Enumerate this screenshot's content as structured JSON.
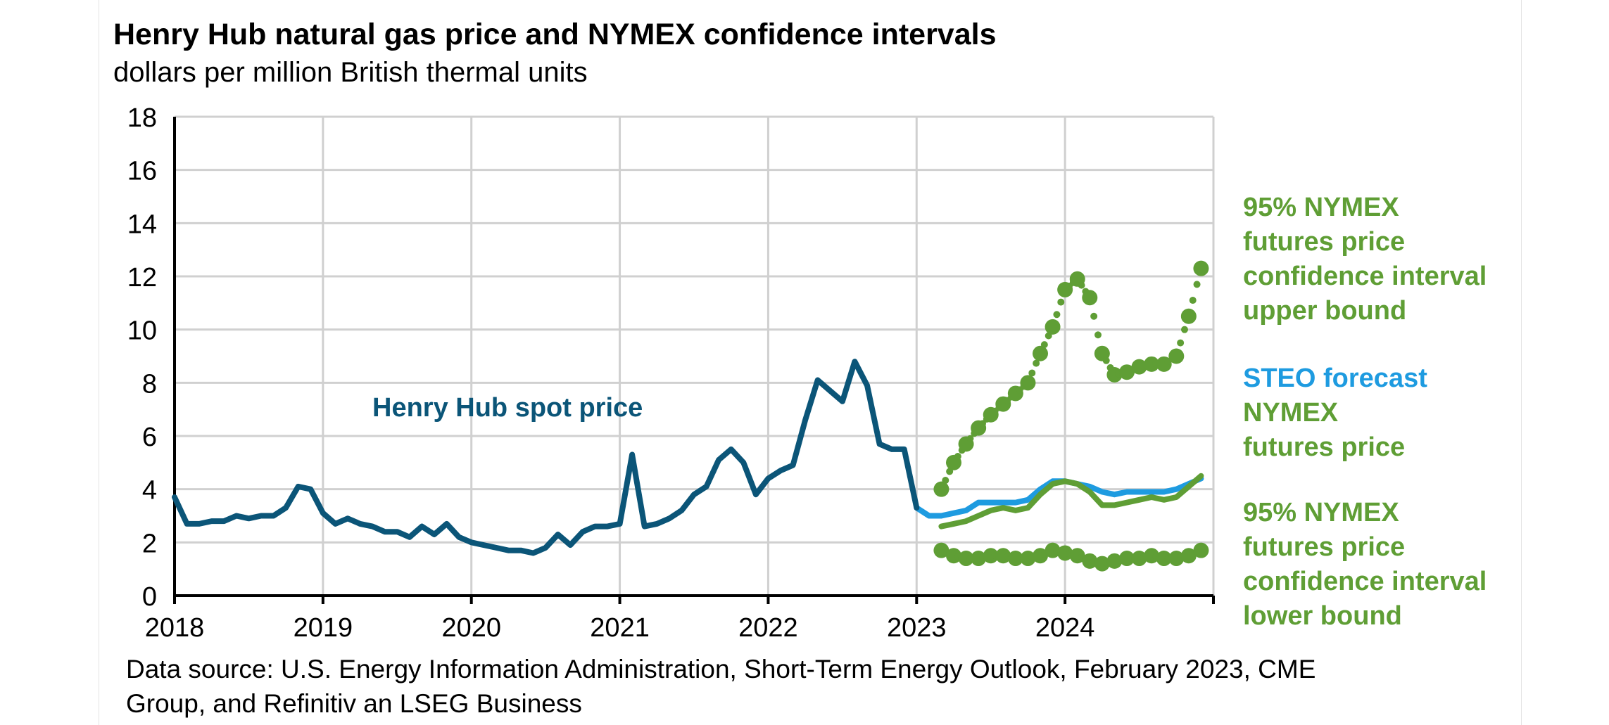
{
  "chart_data": {
    "type": "line",
    "title": "Henry Hub natural gas price and NYMEX confidence intervals",
    "subtitle": "dollars per million British thermal units",
    "ylim": [
      0,
      18
    ],
    "y_ticks": [
      "0",
      "2",
      "4",
      "6",
      "8",
      "10",
      "12",
      "14",
      "16",
      "18"
    ],
    "x_ticks": [
      "2018",
      "2019",
      "2020",
      "2021",
      "2022",
      "2023",
      "2024"
    ],
    "grid": true,
    "source": [
      "Data source: U.S. Energy Information Administration, Short-Term Energy Outlook, February 2023, CME",
      "Group, and Refinitiv an LSEG Business"
    ],
    "annotations": {
      "spot": "Henry Hub spot price",
      "upper": [
        "95% NYMEX",
        "futures price",
        "confidence interval",
        "upper bound"
      ],
      "steo": "STEO forecast",
      "nymex": [
        "NYMEX",
        "futures price"
      ],
      "lower": [
        "95% NYMEX",
        "futures price",
        "confidence interval",
        "lower bound"
      ]
    },
    "colors": {
      "spot": "#0b5578",
      "steo": "#1e9be0",
      "nymex": "#5f9e35"
    },
    "series": [
      {
        "name": "Henry Hub spot price",
        "x": [
          "2018-01",
          "2018-02",
          "2018-03",
          "2018-04",
          "2018-05",
          "2018-06",
          "2018-07",
          "2018-08",
          "2018-09",
          "2018-10",
          "2018-11",
          "2018-12",
          "2019-01",
          "2019-02",
          "2019-03",
          "2019-04",
          "2019-05",
          "2019-06",
          "2019-07",
          "2019-08",
          "2019-09",
          "2019-10",
          "2019-11",
          "2019-12",
          "2020-01",
          "2020-02",
          "2020-03",
          "2020-04",
          "2020-05",
          "2020-06",
          "2020-07",
          "2020-08",
          "2020-09",
          "2020-10",
          "2020-11",
          "2020-12",
          "2021-01",
          "2021-02",
          "2021-03",
          "2021-04",
          "2021-05",
          "2021-06",
          "2021-07",
          "2021-08",
          "2021-09",
          "2021-10",
          "2021-11",
          "2021-12",
          "2022-01",
          "2022-02",
          "2022-03",
          "2022-04",
          "2022-05",
          "2022-06",
          "2022-07",
          "2022-08",
          "2022-09",
          "2022-10",
          "2022-11",
          "2022-12",
          "2023-01"
        ],
        "values": [
          3.7,
          2.7,
          2.7,
          2.8,
          2.8,
          3.0,
          2.9,
          3.0,
          3.0,
          3.3,
          4.1,
          4.0,
          3.1,
          2.7,
          2.9,
          2.7,
          2.6,
          2.4,
          2.4,
          2.2,
          2.6,
          2.3,
          2.7,
          2.2,
          2.0,
          1.9,
          1.8,
          1.7,
          1.7,
          1.6,
          1.8,
          2.3,
          1.9,
          2.4,
          2.6,
          2.6,
          2.7,
          5.3,
          2.6,
          2.7,
          2.9,
          3.2,
          3.8,
          4.1,
          5.1,
          5.5,
          5.0,
          3.8,
          4.4,
          4.7,
          4.9,
          6.6,
          8.1,
          7.7,
          7.3,
          8.8,
          7.9,
          5.7,
          5.5,
          5.5,
          3.3
        ]
      },
      {
        "name": "STEO forecast",
        "x": [
          "2023-01",
          "2023-02",
          "2023-03",
          "2023-04",
          "2023-05",
          "2023-06",
          "2023-07",
          "2023-08",
          "2023-09",
          "2023-10",
          "2023-11",
          "2023-12",
          "2024-01",
          "2024-02",
          "2024-03",
          "2024-04",
          "2024-05",
          "2024-06",
          "2024-07",
          "2024-08",
          "2024-09",
          "2024-10",
          "2024-11",
          "2024-12"
        ],
        "values": [
          3.3,
          3.0,
          3.0,
          3.1,
          3.2,
          3.5,
          3.5,
          3.5,
          3.5,
          3.6,
          4.0,
          4.3,
          4.3,
          4.2,
          4.1,
          3.9,
          3.8,
          3.9,
          3.9,
          3.9,
          3.9,
          4.0,
          4.2,
          4.4
        ]
      },
      {
        "name": "NYMEX futures price",
        "x": [
          "2023-03",
          "2023-04",
          "2023-05",
          "2023-06",
          "2023-07",
          "2023-08",
          "2023-09",
          "2023-10",
          "2023-11",
          "2023-12",
          "2024-01",
          "2024-02",
          "2024-03",
          "2024-04",
          "2024-05",
          "2024-06",
          "2024-07",
          "2024-08",
          "2024-09",
          "2024-10",
          "2024-11",
          "2024-12"
        ],
        "values": [
          2.6,
          2.7,
          2.8,
          3.0,
          3.2,
          3.3,
          3.2,
          3.3,
          3.8,
          4.2,
          4.3,
          4.2,
          3.9,
          3.4,
          3.4,
          3.5,
          3.6,
          3.7,
          3.6,
          3.7,
          4.1,
          4.5
        ]
      },
      {
        "name": "95% NYMEX futures price confidence interval upper bound",
        "x": [
          "2023-03",
          "2023-04",
          "2023-05",
          "2023-06",
          "2023-07",
          "2023-08",
          "2023-09",
          "2023-10",
          "2023-11",
          "2023-12",
          "2024-01",
          "2024-02",
          "2024-03",
          "2024-04",
          "2024-05",
          "2024-06",
          "2024-07",
          "2024-08",
          "2024-09",
          "2024-10",
          "2024-11",
          "2024-12"
        ],
        "values": [
          4.0,
          5.0,
          5.7,
          6.3,
          6.8,
          7.2,
          7.6,
          8.0,
          9.1,
          10.1,
          11.5,
          11.9,
          11.2,
          9.1,
          8.3,
          8.4,
          8.6,
          8.7,
          8.7,
          9.0,
          10.5,
          12.3
        ]
      },
      {
        "name": "95% NYMEX futures price confidence interval lower bound",
        "x": [
          "2023-03",
          "2023-04",
          "2023-05",
          "2023-06",
          "2023-07",
          "2023-08",
          "2023-09",
          "2023-10",
          "2023-11",
          "2023-12",
          "2024-01",
          "2024-02",
          "2024-03",
          "2024-04",
          "2024-05",
          "2024-06",
          "2024-07",
          "2024-08",
          "2024-09",
          "2024-10",
          "2024-11",
          "2024-12"
        ],
        "values": [
          1.7,
          1.5,
          1.4,
          1.4,
          1.5,
          1.5,
          1.4,
          1.4,
          1.5,
          1.7,
          1.6,
          1.5,
          1.3,
          1.2,
          1.3,
          1.4,
          1.4,
          1.5,
          1.4,
          1.4,
          1.5,
          1.7
        ]
      }
    ]
  }
}
